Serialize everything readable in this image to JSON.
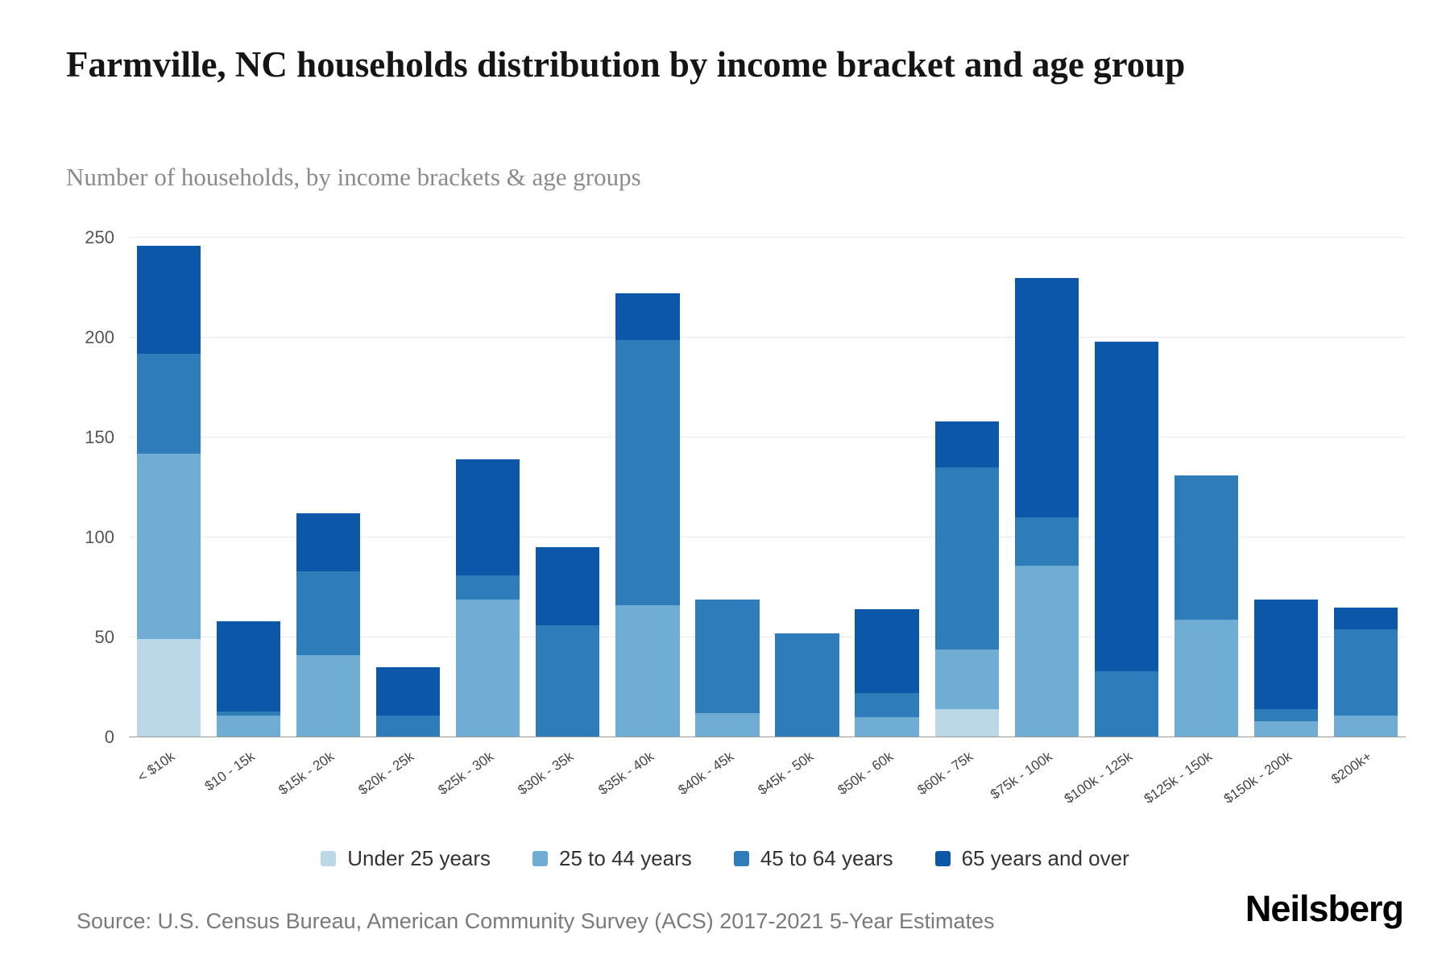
{
  "header": {
    "title": "Farmville, NC households distribution by income bracket and age group",
    "subtitle": "Number of households, by income brackets & age groups"
  },
  "footer": {
    "source": "Source: U.S. Census Bureau, American Community Survey (ACS) 2017-2021 5-Year Estimates",
    "brand": "Neilsberg"
  },
  "chart_data": {
    "type": "bar",
    "stacked": true,
    "title": "Farmville, NC households distribution by income bracket and age group",
    "subtitle": "Number of households, by income brackets & age groups",
    "xlabel": "",
    "ylabel": "Number of households",
    "ylim": [
      0,
      250
    ],
    "y_ticks": [
      0,
      50,
      100,
      150,
      200,
      250
    ],
    "grid": true,
    "legend_position": "bottom",
    "categories": [
      "< $10k",
      "$10 - 15k",
      "$15k - 20k",
      "$20k - 25k",
      "$25k - 30k",
      "$30k - 35k",
      "$35k - 40k",
      "$40k - 45k",
      "$45k - 50k",
      "$50k - 60k",
      "$60k - 75k",
      "$75k - 100k",
      "$100k - 125k",
      "$125k - 150k",
      "$150k - 200k",
      "$200k+"
    ],
    "series": [
      {
        "name": "Under 25 years",
        "color": "#bcd8e8",
        "values": [
          49,
          0,
          0,
          0,
          0,
          0,
          0,
          0,
          0,
          0,
          14,
          0,
          0,
          0,
          0,
          0
        ]
      },
      {
        "name": "25 to 44 years",
        "color": "#6fadd5",
        "values": [
          93,
          11,
          41,
          0,
          69,
          0,
          66,
          12,
          0,
          10,
          30,
          86,
          0,
          59,
          8,
          11
        ]
      },
      {
        "name": "45 to 64 years",
        "color": "#2f7cba",
        "values": [
          50,
          2,
          42,
          11,
          12,
          56,
          133,
          57,
          52,
          12,
          91,
          24,
          33,
          72,
          6,
          43
        ]
      },
      {
        "name": "65 years and over",
        "color": "#0d57a8",
        "values": [
          54,
          45,
          29,
          24,
          58,
          39,
          23,
          0,
          0,
          42,
          23,
          120,
          165,
          0,
          55,
          11
        ]
      }
    ]
  }
}
